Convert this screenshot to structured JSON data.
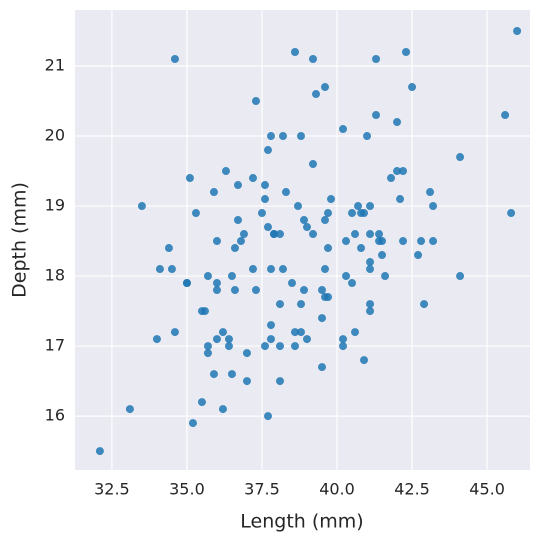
{
  "chart_data": {
    "type": "scatter",
    "x_label": "Length (mm)",
    "y_label": "Depth (mm)",
    "color": "#1f77b4",
    "grid": true,
    "xlim": [
      31.27,
      46.43
    ],
    "ylim": [
      15.23,
      21.8
    ],
    "xticks": [
      32.5,
      {
        "value": 35,
        "label": "35.0"
      },
      37.5,
      {
        "value": 40,
        "label": "40.0"
      },
      42.5,
      {
        "value": 45,
        "label": "45.0"
      }
    ],
    "yticks": [
      16,
      17,
      18,
      19,
      20,
      21
    ],
    "x": [
      32.1,
      33.1,
      33.5,
      34.0,
      34.1,
      34.4,
      34.5,
      34.6,
      34.6,
      35.0,
      35.0,
      35.1,
      35.2,
      35.3,
      35.5,
      35.5,
      35.6,
      35.7,
      35.7,
      35.7,
      35.9,
      35.9,
      36.0,
      36.0,
      36.0,
      36.0,
      36.2,
      36.2,
      36.3,
      36.4,
      36.4,
      36.5,
      36.5,
      36.6,
      36.6,
      36.7,
      36.7,
      36.8,
      36.9,
      37.0,
      37.0,
      37.2,
      37.2,
      37.3,
      37.3,
      37.5,
      37.6,
      37.6,
      37.6,
      37.7,
      37.7,
      37.7,
      37.8,
      37.8,
      37.8,
      37.8,
      37.9,
      37.9,
      38.1,
      38.1,
      38.1,
      38.1,
      38.2,
      38.2,
      38.3,
      38.5,
      38.6,
      38.6,
      38.6,
      38.7,
      38.8,
      38.8,
      38.8,
      38.9,
      38.9,
      39.0,
      39.0,
      39.2,
      39.2,
      39.2,
      39.3,
      39.5,
      39.5,
      39.5,
      39.6,
      39.6,
      39.6,
      39.6,
      39.7,
      39.7,
      39.7,
      39.8,
      40.2,
      40.2,
      40.2,
      40.3,
      40.3,
      40.5,
      40.5,
      40.6,
      40.6,
      40.7,
      40.8,
      40.8,
      40.9,
      40.9,
      41.0,
      41.1,
      41.1,
      41.1,
      41.1,
      41.1,
      41.1,
      41.3,
      41.3,
      41.4,
      41.4,
      41.5,
      41.5,
      41.6,
      41.8,
      42.0,
      42.0,
      42.1,
      42.2,
      42.2,
      42.3,
      42.5,
      42.7,
      42.8,
      42.9,
      43.1,
      43.2,
      43.2,
      44.1,
      44.1,
      45.6,
      45.8,
      46.0
    ],
    "y": [
      15.5,
      16.1,
      19.0,
      17.1,
      18.1,
      18.4,
      18.1,
      21.1,
      17.2,
      17.9,
      17.9,
      19.4,
      15.9,
      18.9,
      16.2,
      17.5,
      17.5,
      16.9,
      17.0,
      18.0,
      16.6,
      19.2,
      17.1,
      17.8,
      18.5,
      17.9,
      16.1,
      17.2,
      19.5,
      17.0,
      17.1,
      16.6,
      18.0,
      17.8,
      18.4,
      18.8,
      19.3,
      18.5,
      18.6,
      16.9,
      16.5,
      18.1,
      19.4,
      17.8,
      20.5,
      18.9,
      19.3,
      17.0,
      19.1,
      16.0,
      18.7,
      19.8,
      17.1,
      17.3,
      18.1,
      20.0,
      18.6,
      18.6,
      16.5,
      17.0,
      18.6,
      17.6,
      20.0,
      18.1,
      19.2,
      17.9,
      21.2,
      17.0,
      17.2,
      19.0,
      17.2,
      20.0,
      17.6,
      18.8,
      17.8,
      17.1,
      18.7,
      19.6,
      18.6,
      21.1,
      20.6,
      16.7,
      17.4,
      17.8,
      17.7,
      18.1,
      18.8,
      20.7,
      17.7,
      18.4,
      18.9,
      19.1,
      17.0,
      17.1,
      20.1,
      18.0,
      18.5,
      17.9,
      18.9,
      17.2,
      18.6,
      19.0,
      18.4,
      18.9,
      16.8,
      18.9,
      20.0,
      17.5,
      17.6,
      18.1,
      18.2,
      19.0,
      18.6,
      20.3,
      21.1,
      18.5,
      18.6,
      18.3,
      18.5,
      18.0,
      19.4,
      19.5,
      20.2,
      19.1,
      18.5,
      19.5,
      21.2,
      20.7,
      18.3,
      18.5,
      17.6,
      19.2,
      18.5,
      19.0,
      18.0,
      19.7,
      20.3,
      18.9,
      21.5
    ]
  }
}
